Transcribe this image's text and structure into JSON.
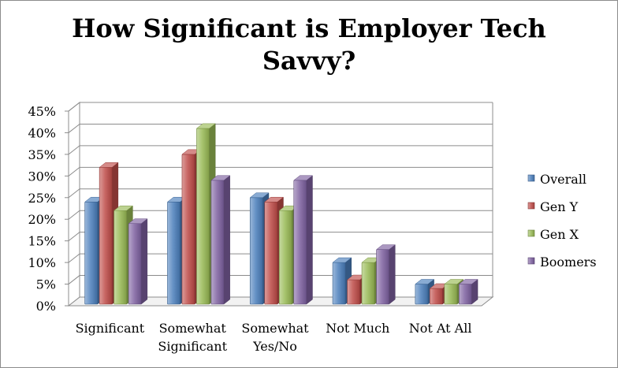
{
  "chart_data": {
    "type": "bar",
    "title_lines": [
      "How Significant is Employer Tech",
      "Savvy?"
    ],
    "categories": [
      [
        "Significant"
      ],
      [
        "Somewhat",
        "Significant"
      ],
      [
        "Somewhat",
        "Yes/No"
      ],
      [
        "Not Much"
      ],
      [
        "Not At All"
      ]
    ],
    "series": [
      {
        "name": "Overall",
        "color": "#4a7ebb",
        "values": [
          24,
          24,
          25,
          10,
          5
        ]
      },
      {
        "name": "Gen Y",
        "color": "#be4b48",
        "values": [
          32,
          35,
          24,
          6,
          4
        ]
      },
      {
        "name": "Gen X",
        "color": "#98b954",
        "values": [
          22,
          41,
          22,
          10,
          5
        ]
      },
      {
        "name": "Boomers",
        "color": "#7d60a0",
        "values": [
          19,
          29,
          29,
          13,
          5
        ]
      }
    ],
    "yticks": [
      "0%",
      "5%",
      "10%",
      "15%",
      "20%",
      "25%",
      "30%",
      "35%",
      "40%",
      "45%"
    ],
    "ylim": [
      0,
      45
    ],
    "grid": true,
    "legend": "right"
  }
}
